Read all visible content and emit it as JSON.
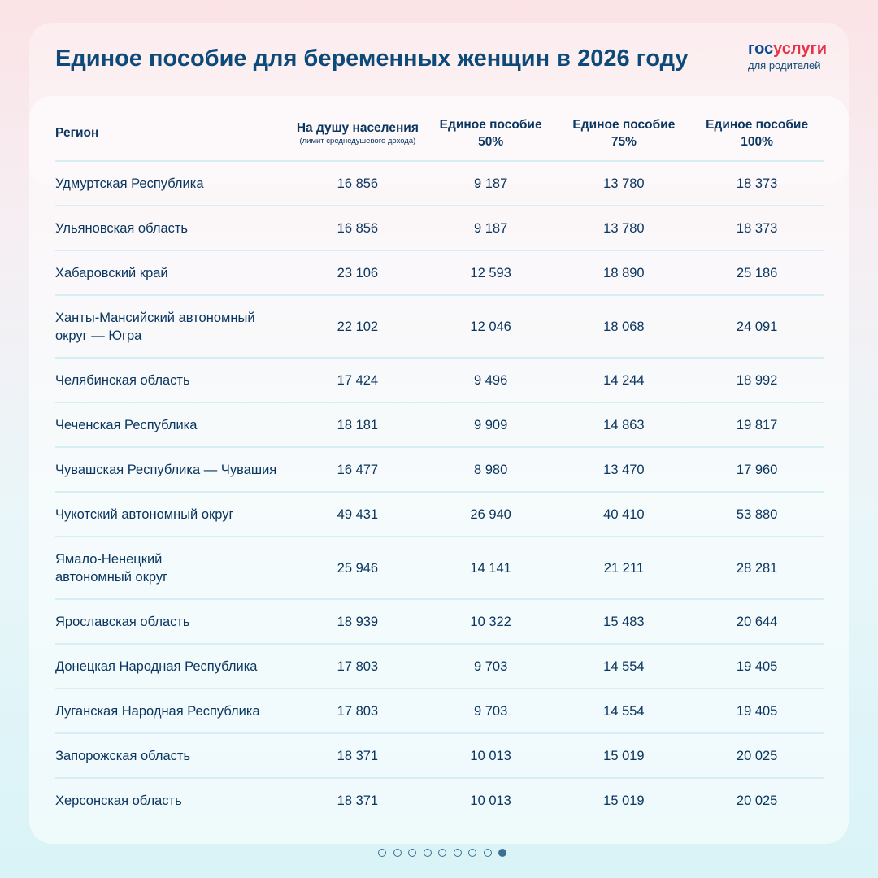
{
  "title": "Единое пособие для беременных женщин в 2026 году",
  "logo": {
    "part1": "гос",
    "part2": "услуги",
    "subtitle": "для родителей"
  },
  "table": {
    "headers": {
      "region": "Регион",
      "per_capita": "На душу населения",
      "per_capita_note": "(лимит среднедушевого дохода)",
      "p50_line1": "Единое пособие",
      "p50_line2": "50%",
      "p75_line1": "Единое пособие",
      "p75_line2": "75%",
      "p100_line1": "Единое пособие",
      "p100_line2": "100%"
    },
    "rows": [
      {
        "region": "Удмуртская Республика",
        "per_capita": "16 856",
        "p50": "9 187",
        "p75": "13 780",
        "p100": "18 373"
      },
      {
        "region": "Ульяновская область",
        "per_capita": "16 856",
        "p50": "9 187",
        "p75": "13 780",
        "p100": "18 373"
      },
      {
        "region": "Хабаровский край",
        "per_capita": "23 106",
        "p50": "12 593",
        "p75": "18 890",
        "p100": "25 186"
      },
      {
        "region": "Ханты-Мансийский автономный округ — Югра",
        "per_capita": "22 102",
        "p50": "12 046",
        "p75": "18 068",
        "p100": "24 091"
      },
      {
        "region": "Челябинская область",
        "per_capita": "17 424",
        "p50": "9 496",
        "p75": "14 244",
        "p100": "18 992"
      },
      {
        "region": "Чеченская Республика",
        "per_capita": "18 181",
        "p50": "9 909",
        "p75": "14 863",
        "p100": "19 817"
      },
      {
        "region": "Чувашская Республика — Чувашия",
        "per_capita": "16 477",
        "p50": "8 980",
        "p75": "13 470",
        "p100": "17 960"
      },
      {
        "region": "Чукотский автономный округ",
        "per_capita": "49 431",
        "p50": "26 940",
        "p75": "40 410",
        "p100": "53 880"
      },
      {
        "region": "Ямало-Ненецкий автономный округ",
        "per_capita": "25 946",
        "p50": "14 141",
        "p75": "21 211",
        "p100": "28 281"
      },
      {
        "region": "Ярославская область",
        "per_capita": "18 939",
        "p50": "10 322",
        "p75": "15 483",
        "p100": "20 644"
      },
      {
        "region": "Донецкая Народная Республика",
        "per_capita": "17 803",
        "p50": "9 703",
        "p75": "14 554",
        "p100": "19 405"
      },
      {
        "region": "Луганская Народная Республика",
        "per_capita": "17 803",
        "p50": "9 703",
        "p75": "14 554",
        "p100": "19 405"
      },
      {
        "region": "Запорожская область",
        "per_capita": "18 371",
        "p50": "10 013",
        "p75": "15 019",
        "p100": "20 025"
      },
      {
        "region": "Херсонская область",
        "per_capita": "18 371",
        "p50": "10 013",
        "p75": "15 019",
        "p100": "20 025"
      }
    ]
  },
  "pagination": {
    "total": 9,
    "current": 9
  },
  "colors": {
    "title": "#0d4a7a",
    "accent_red": "#e5344a",
    "dot": "#3d6f96"
  }
}
